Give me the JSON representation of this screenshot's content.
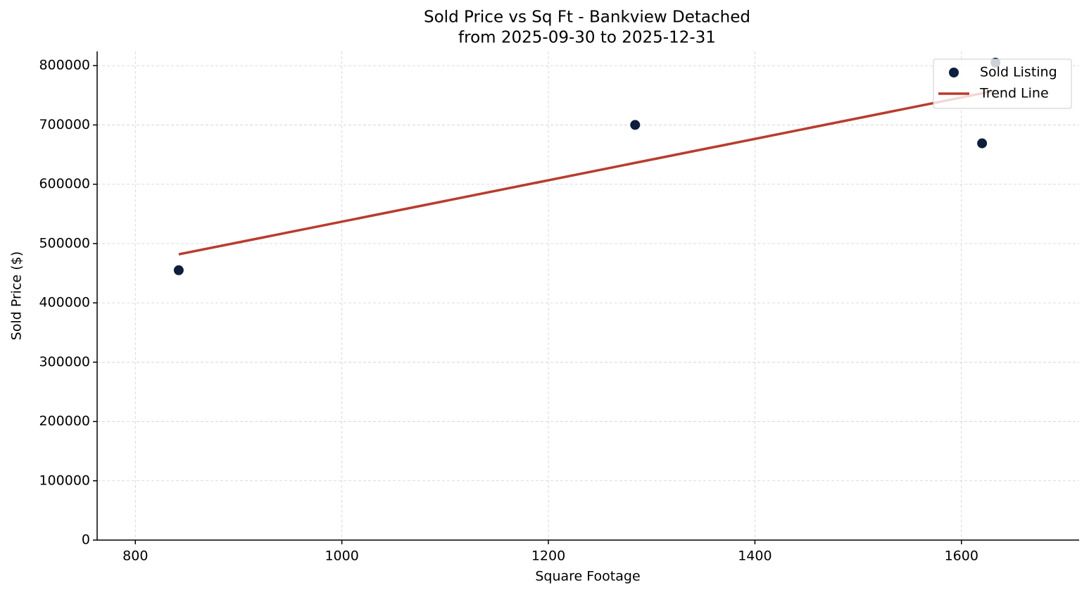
{
  "chart_data": {
    "type": "scatter",
    "title": "Sold Price vs Sq Ft - Bankview Detached",
    "subtitle": "from 2025-09-30 to 2025-12-31",
    "x_label": "Square Footage",
    "y_label": "Sold Price ($)",
    "xlim": [
      763,
      1714
    ],
    "ylim": [
      0,
      824000
    ],
    "xticks": [
      800,
      1000,
      1200,
      1400,
      1600
    ],
    "yticks": [
      0,
      100000,
      200000,
      300000,
      400000,
      500000,
      600000,
      700000,
      800000
    ],
    "grid": true,
    "legend": "upper right",
    "series": [
      {
        "name": "Sold Listing",
        "type": "scatter",
        "color": "#0d1f3c",
        "x": [
          842,
          1284,
          1620,
          1633
        ],
        "values": [
          455000,
          700000,
          669000,
          805000
        ]
      },
      {
        "name": "Trend Line",
        "type": "line",
        "color": "#b83c2e",
        "x": [
          842,
          1633
        ],
        "values": [
          481800,
          757800
        ]
      }
    ]
  }
}
